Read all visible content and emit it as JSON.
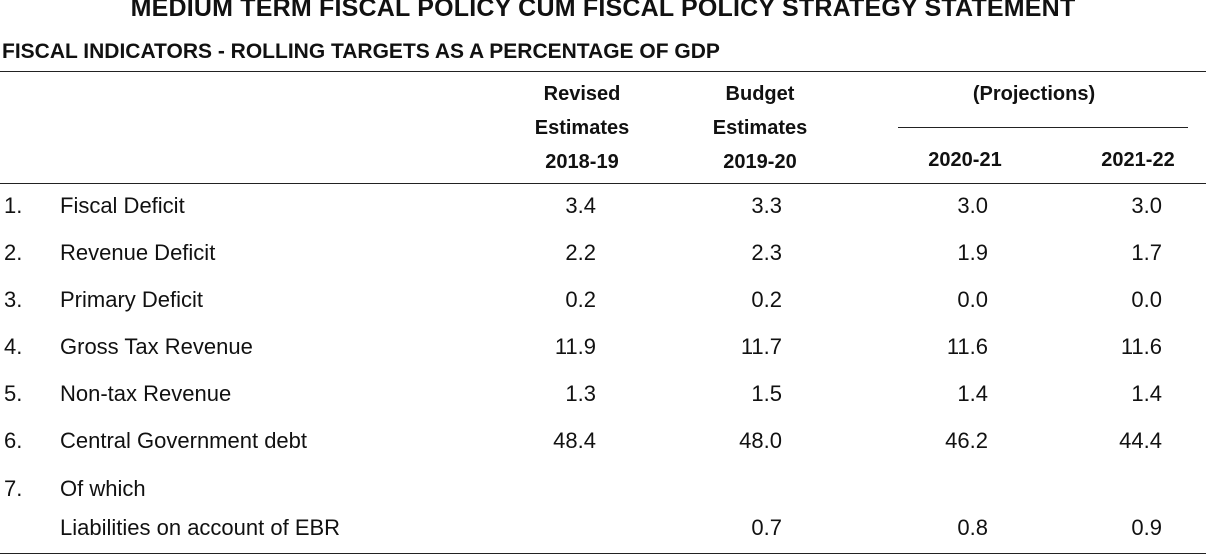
{
  "title": "MEDIUM TERM FISCAL POLICY CUM FISCAL POLICY STRATEGY STATEMENT",
  "subtitle": "FISCAL INDICATORS - ROLLING TARGETS AS A PERCENTAGE OF GDP",
  "headers": {
    "revised": [
      "Revised",
      "Estimates",
      "2018-19"
    ],
    "budget": [
      "Budget",
      "Estimates",
      "2019-20"
    ],
    "projections": "(Projections)",
    "proj_year_1": "2020-21",
    "proj_year_2": "2021-22"
  },
  "rows": [
    {
      "num": "1.",
      "label": "Fiscal Deficit",
      "values": [
        "3.4",
        "3.3",
        "3.0",
        "3.0"
      ]
    },
    {
      "num": "2.",
      "label": "Revenue Deficit",
      "values": [
        "2.2",
        "2.3",
        "1.9",
        "1.7"
      ]
    },
    {
      "num": "3.",
      "label": "Primary Deficit",
      "values": [
        "0.2",
        "0.2",
        "0.0",
        "0.0"
      ]
    },
    {
      "num": "4.",
      "label": "Gross Tax Revenue",
      "values": [
        "11.9",
        "11.7",
        "11.6",
        "11.6"
      ]
    },
    {
      "num": "5.",
      "label": "Non-tax Revenue",
      "values": [
        "1.3",
        "1.5",
        "1.4",
        "1.4"
      ]
    },
    {
      "num": "6.",
      "label": "Central Government debt",
      "values": [
        "48.4",
        "48.0",
        "46.2",
        "44.4"
      ]
    },
    {
      "num": "7.",
      "label": "Of which",
      "values": [
        "",
        "",
        "",
        ""
      ]
    },
    {
      "num": "",
      "label": "Liabilities on account of EBR",
      "values": [
        "",
        "0.7",
        "0.8",
        "0.9"
      ]
    }
  ]
}
